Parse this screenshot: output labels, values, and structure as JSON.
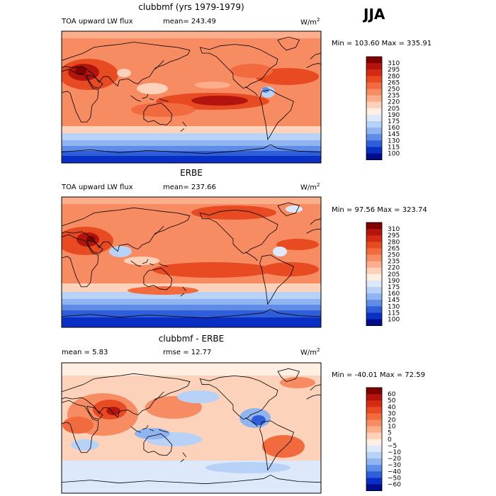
{
  "season": "JJA",
  "unit_base": "W/m",
  "unit_exp": "2",
  "chart_data": [
    {
      "type": "heatmap",
      "title": "clubbmf (yrs 1979-1979)",
      "variable": "TOA upward LW flux",
      "mean_text": "mean= 243.49",
      "minmax_text": "Min = 103.60 Max = 335.91",
      "min": 103.6,
      "max": 335.91,
      "colorbar_levels": [
        100,
        115,
        130,
        145,
        160,
        175,
        190,
        205,
        220,
        235,
        250,
        265,
        280,
        295,
        310
      ],
      "colorbar_labels": [
        "310",
        "295",
        "280",
        "265",
        "250",
        "235",
        "220",
        "205",
        "190",
        "175",
        "160",
        "145",
        "130",
        "115",
        "100"
      ]
    },
    {
      "type": "heatmap",
      "title": "ERBE",
      "variable": "TOA upward LW flux",
      "mean_text": "mean= 237.66",
      "minmax_text": "Min =  97.56 Max = 323.74",
      "min": 97.56,
      "max": 323.74,
      "colorbar_levels": [
        100,
        115,
        130,
        145,
        160,
        175,
        190,
        205,
        220,
        235,
        250,
        265,
        280,
        295,
        310
      ],
      "colorbar_labels": [
        "310",
        "295",
        "280",
        "265",
        "250",
        "235",
        "220",
        "205",
        "190",
        "175",
        "160",
        "145",
        "130",
        "115",
        "100"
      ]
    },
    {
      "type": "heatmap",
      "title": "clubbmf - ERBE",
      "mean_text": "mean =   5.83",
      "rmse_text": "rmse =  12.77",
      "minmax_text": "Min = -40.01 Max =  72.59",
      "min": -40.01,
      "max": 72.59,
      "colorbar_levels": [
        -60,
        -50,
        -40,
        -30,
        -20,
        -10,
        -5,
        0,
        5,
        10,
        20,
        30,
        40,
        50,
        60
      ],
      "colorbar_labels": [
        "60",
        "50",
        "40",
        "30",
        "20",
        "10",
        "5",
        "0",
        "−5",
        "−10",
        "−20",
        "−30",
        "−40",
        "−50",
        "−60"
      ]
    }
  ],
  "colors": {
    "scale": [
      "#800000",
      "#b3140d",
      "#d42a12",
      "#e84a22",
      "#f26b3f",
      "#f78c62",
      "#fbad8c",
      "#fdd2bb",
      "#ffeee2",
      "#dde9fb",
      "#b8d2f7",
      "#8fb4f0",
      "#5f8ce6",
      "#2e5fd8",
      "#0a2fc4",
      "#000d8a"
    ],
    "land_line": "#000000"
  }
}
